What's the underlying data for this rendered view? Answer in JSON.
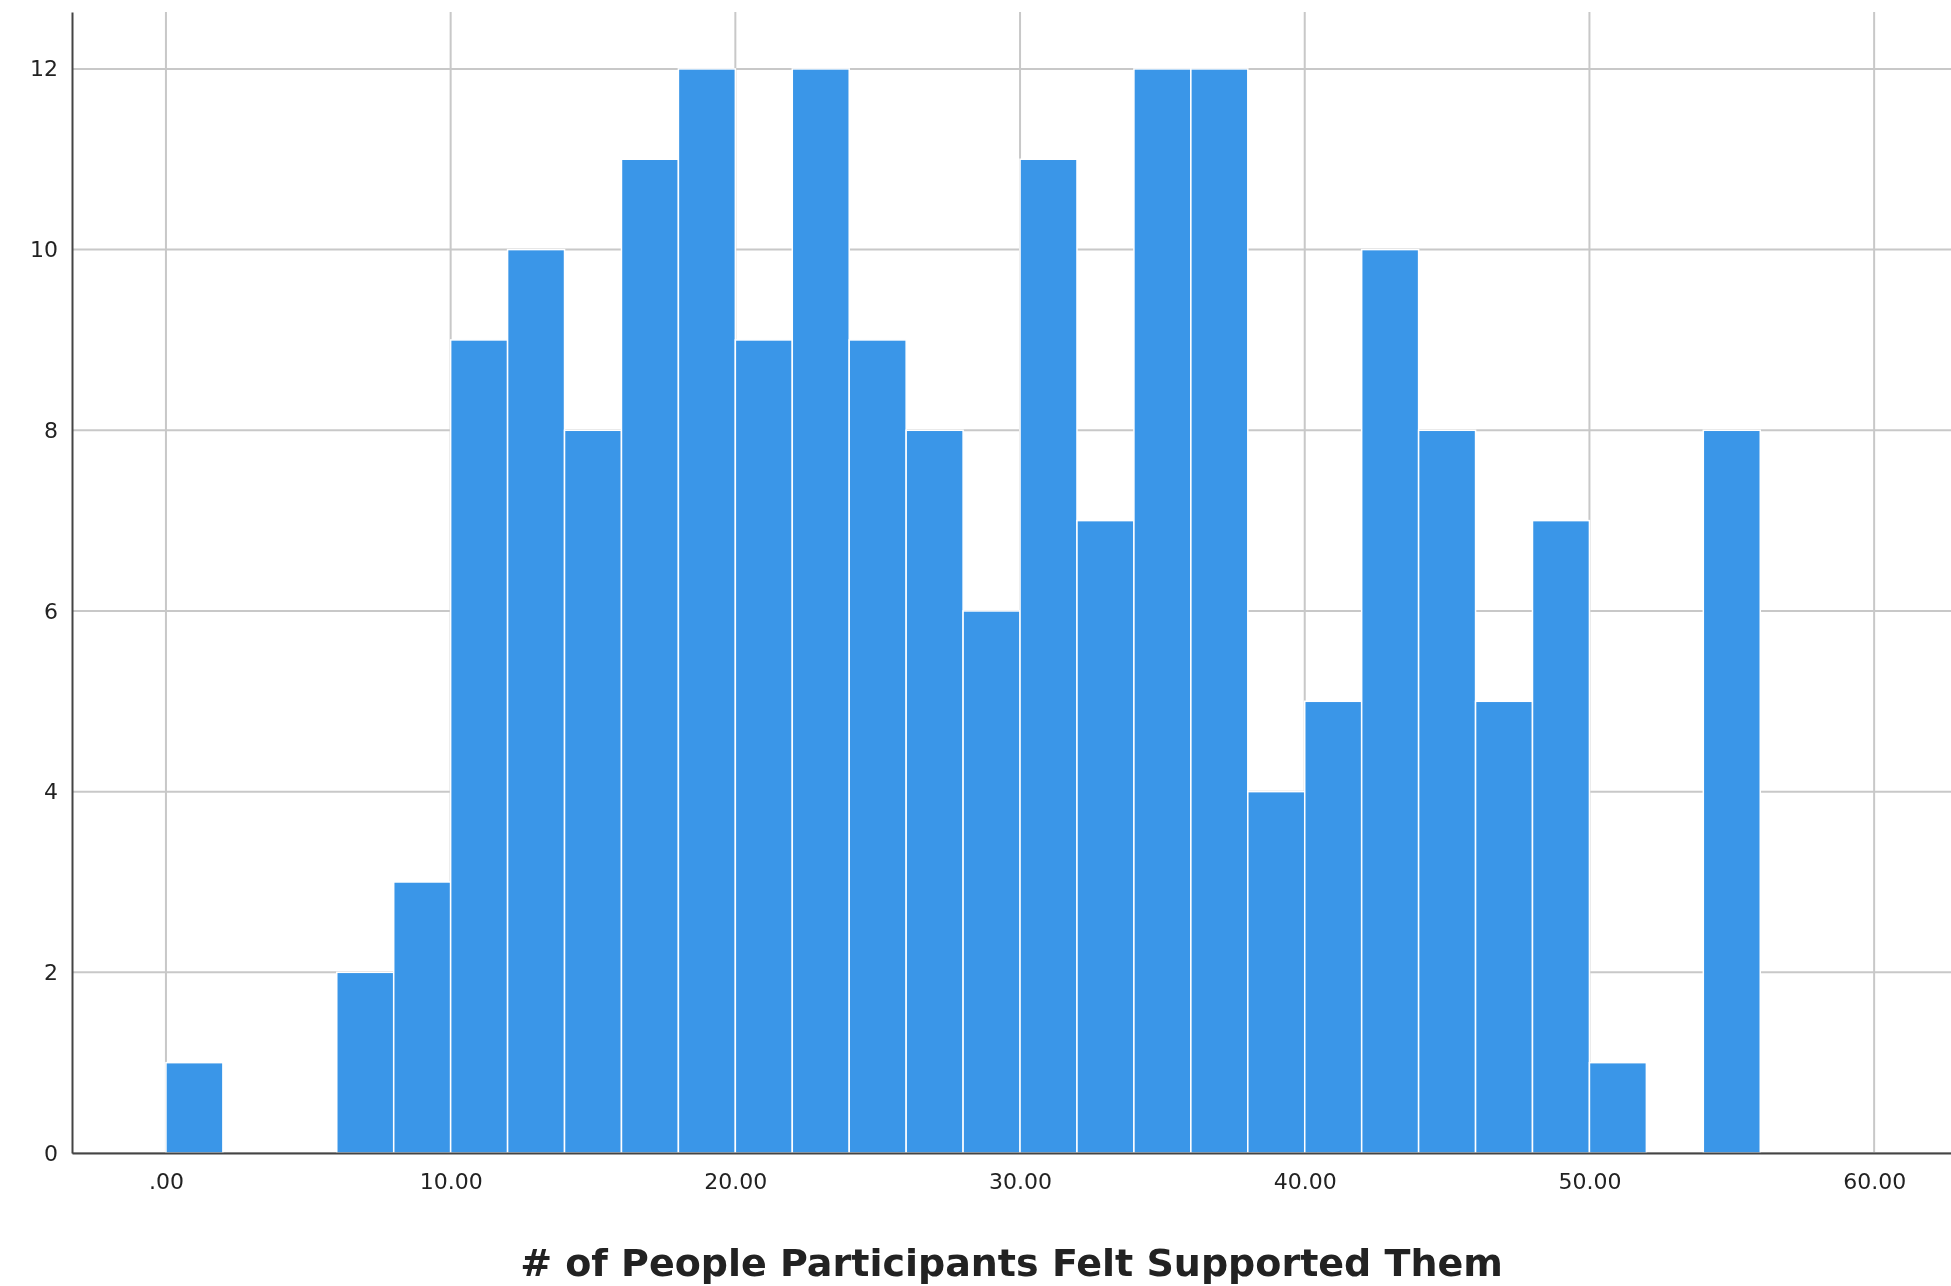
{
  "chart_data": {
    "type": "histogram",
    "xlabel": "# of People Participants Felt Supported Them",
    "bins": [
      0,
      2,
      4,
      6,
      8,
      10,
      12,
      14,
      16,
      18,
      20,
      22,
      24,
      26,
      28,
      30,
      32,
      34,
      36,
      38,
      40,
      42,
      44,
      46,
      48,
      50,
      52,
      54,
      56
    ],
    "values": [
      1,
      0,
      0,
      2,
      3,
      9,
      10,
      8,
      11,
      12,
      9,
      12,
      9,
      8,
      6,
      11,
      7,
      12,
      12,
      4,
      5,
      10,
      8,
      5,
      7,
      1,
      0,
      8
    ],
    "color": "#3a96e8",
    "xlim": [
      -3.3,
      62.7
    ],
    "xticks": [
      {
        "value": 0,
        "label": ".00"
      },
      {
        "value": 10,
        "label": "10.00"
      },
      {
        "value": 20,
        "label": "20.00"
      },
      {
        "value": 30,
        "label": "30.00"
      },
      {
        "value": 40,
        "label": "40.00"
      },
      {
        "value": 50,
        "label": "50.00"
      },
      {
        "value": 60,
        "label": "60.00"
      }
    ],
    "ylim": [
      0,
      12.63
    ],
    "yticks": [
      0,
      2,
      4,
      6,
      8,
      10,
      12
    ],
    "grid": true
  }
}
